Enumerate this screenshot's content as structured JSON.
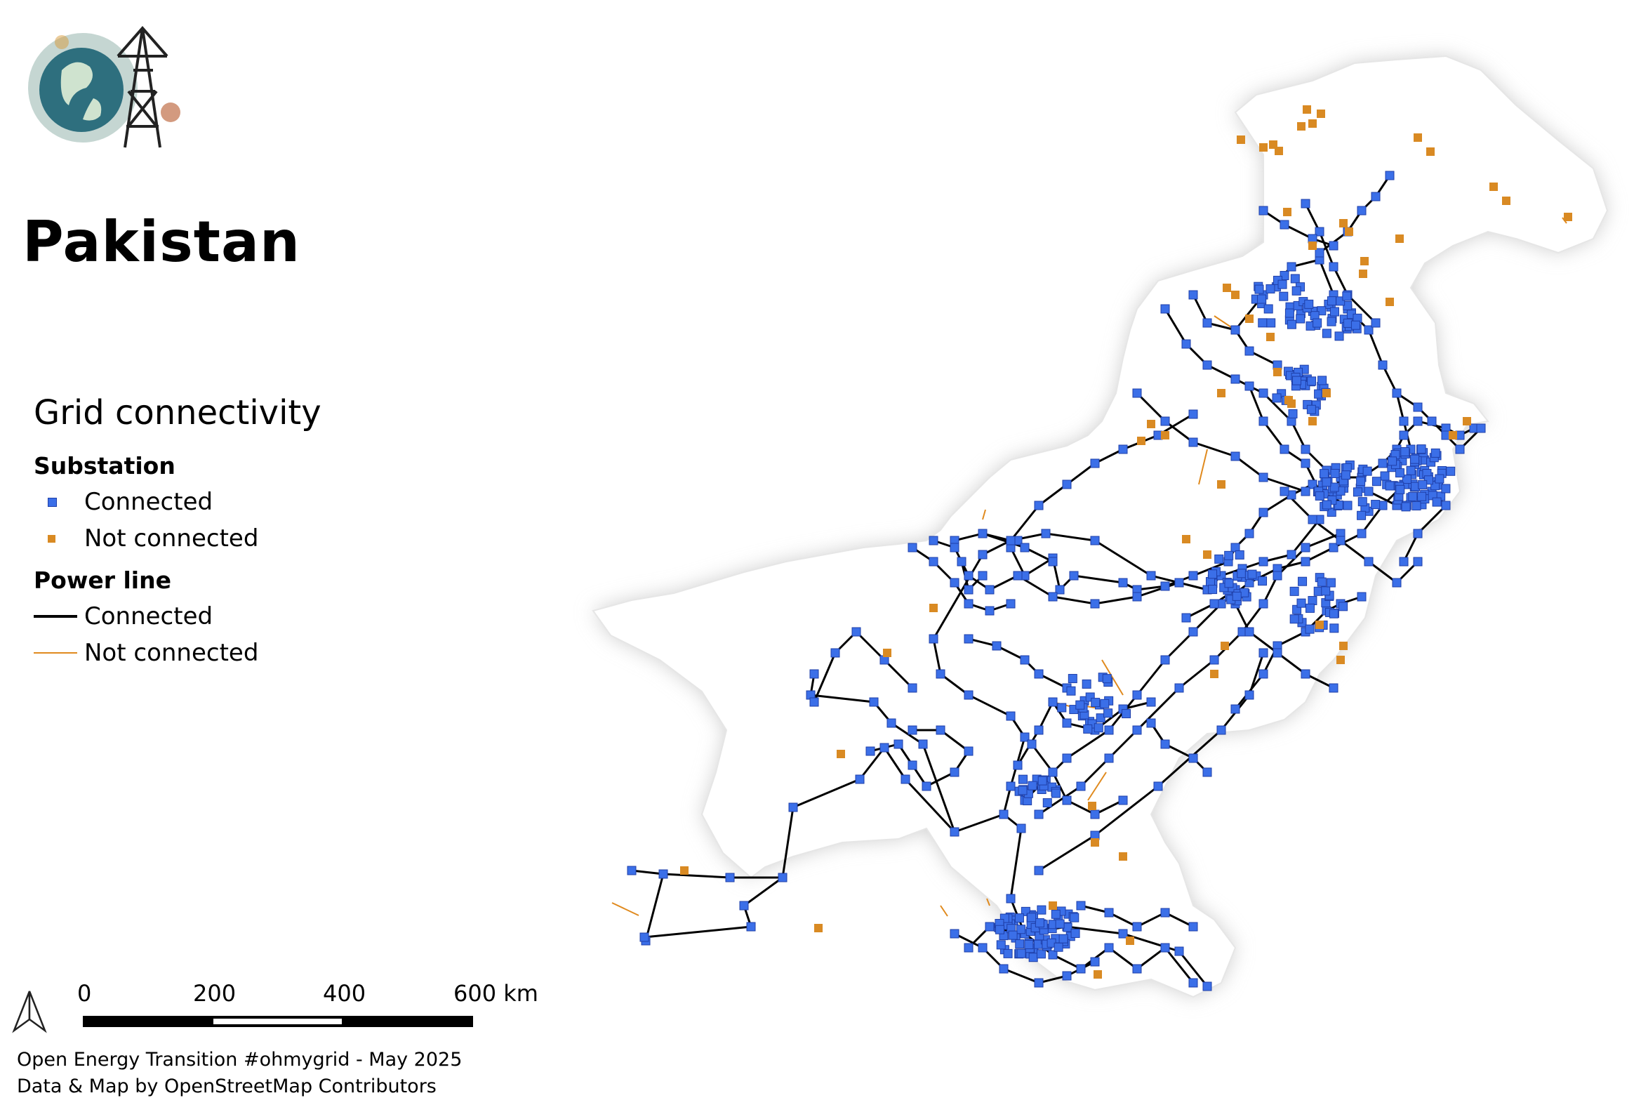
{
  "map": {
    "title": "Pakistan",
    "colors": {
      "land": "#ffffff",
      "halo": "#d9d9d9",
      "connected_substation": "#3b6fe8",
      "connected_substation_outline": "#1f3fa8",
      "not_connected_substation": "#d98a23",
      "connected_line": "#000000",
      "not_connected_line": "#e08a1e"
    }
  },
  "legend": {
    "title": "Grid connectivity",
    "substation_heading": "Substation",
    "substation_connected": "Connected",
    "substation_not_connected": "Not connected",
    "line_heading": "Power line",
    "line_connected": "Connected",
    "line_not_connected": "Not connected"
  },
  "scalebar": {
    "labels": [
      "0",
      "200",
      "400",
      "600 km"
    ]
  },
  "credits": {
    "line1": "Open Energy Transition #ohmygrid - May 2025",
    "line2": "Data & Map by OpenStreetMap Contributors"
  },
  "icons": {
    "logo": "globe-power-tower-logo",
    "north_arrow": "north-arrow-icon"
  }
}
